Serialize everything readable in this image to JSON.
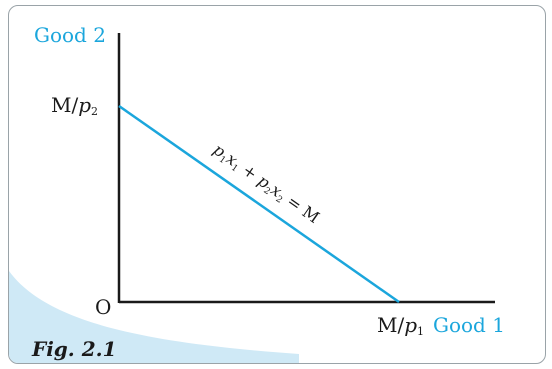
{
  "diagram": {
    "y_axis_label": "Good 2",
    "x_axis_label": "Good 1",
    "origin_label": "O",
    "y_intercept": {
      "numerator": "M/",
      "var": "p",
      "sub": "2"
    },
    "x_intercept": {
      "numerator": "M/",
      "var": "p",
      "sub": "1"
    },
    "budget_line": {
      "p1": "p",
      "s1": "1",
      "x1": "x",
      "s1b": "1",
      "plus": " + ",
      "p2": "p",
      "s2": "2",
      "x2": "x",
      "s2b": "2",
      "equals": " = M"
    },
    "figure_label": "Fig. 2.1",
    "colors": {
      "accent": "#1ba6dc",
      "axis": "#1a1a1a",
      "corner_fill": "#cfe9f6"
    }
  }
}
